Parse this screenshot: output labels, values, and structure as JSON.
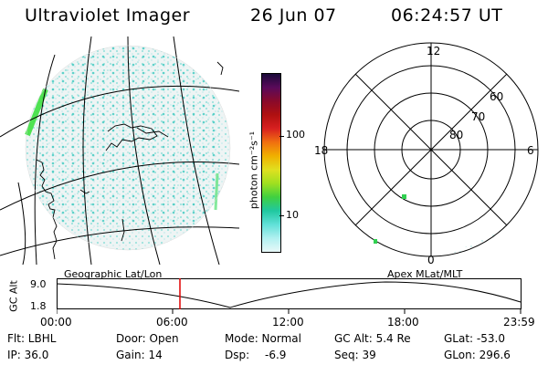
{
  "header": {
    "title": "Ultraviolet Imager",
    "date": "26 Jun 07",
    "time": "06:24:57 UT"
  },
  "colorbar": {
    "unit_label": "photon cm⁻²s⁻¹",
    "ticks": [
      "100",
      "10"
    ],
    "colors": [
      "#1a0a3a",
      "#5a0a5a",
      "#8a0a2a",
      "#b01010",
      "#d82020",
      "#f07010",
      "#f0b000",
      "#e0e020",
      "#a0e020",
      "#40d040",
      "#20c8a0",
      "#60e0d8",
      "#b0f0f0",
      "#e8f8f8"
    ]
  },
  "polar_plot": {
    "mlt_labels": [
      "12",
      "18",
      "6",
      "0"
    ],
    "lat_labels": [
      "60",
      "70",
      "80"
    ]
  },
  "timeline": {
    "left_label": "Geographic Lat/Lon",
    "right_label": "Apex  MLat/MLT",
    "axis_title": "GC Alt",
    "y_ticks": [
      "9.0",
      "1.8"
    ],
    "x_ticks": [
      "00:00",
      "06:00",
      "12:00",
      "18:00",
      "23:59"
    ],
    "cursor_color": "#e00000"
  },
  "status": {
    "filter": "Flt: LBHL",
    "ip": "IP: 36.0",
    "door": "Door: Open",
    "gain": "Gain: 14",
    "mode": "Mode: Normal",
    "dsp_label": "Dsp:",
    "dsp_value": "-6.9",
    "gc_alt": "GC Alt: 5.4 Re",
    "seq": "Seq: 39",
    "glat": "GLat: -53.0",
    "glon": "GLon: 296.6"
  }
}
